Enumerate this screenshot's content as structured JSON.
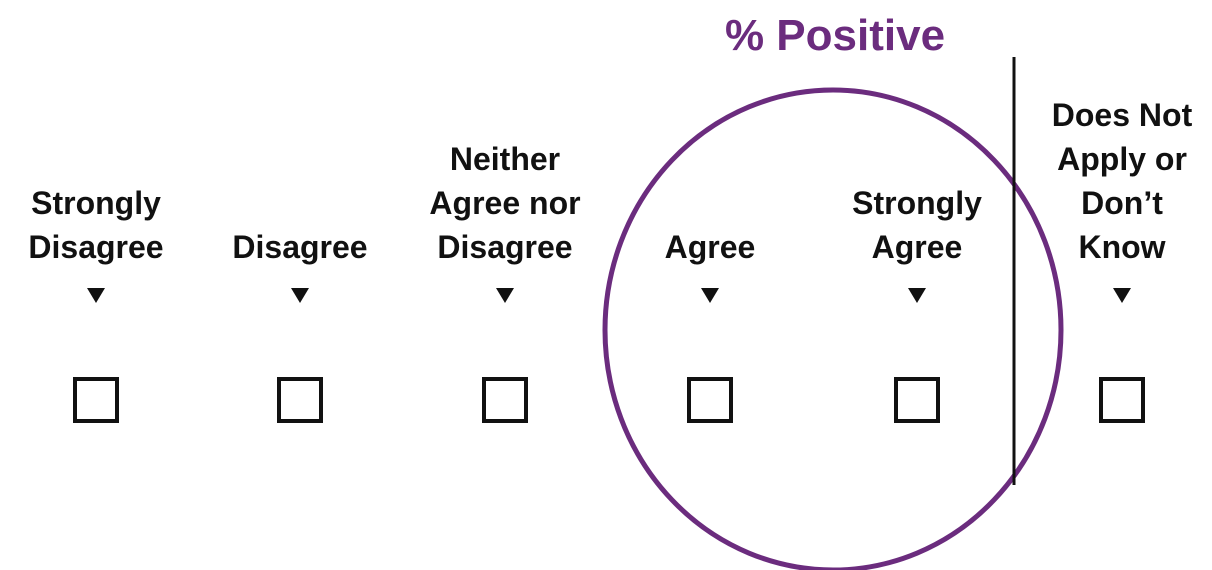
{
  "title": "% Positive",
  "options": [
    {
      "lines": [
        "Strongly",
        "Disagree"
      ]
    },
    {
      "lines": [
        "Disagree"
      ]
    },
    {
      "lines": [
        "Neither",
        "Agree nor",
        "Disagree"
      ]
    },
    {
      "lines": [
        "Agree"
      ]
    },
    {
      "lines": [
        "Strongly",
        "Agree"
      ]
    },
    {
      "lines": [
        "Does Not",
        "Apply or",
        "Don’t",
        "Know"
      ]
    }
  ]
}
